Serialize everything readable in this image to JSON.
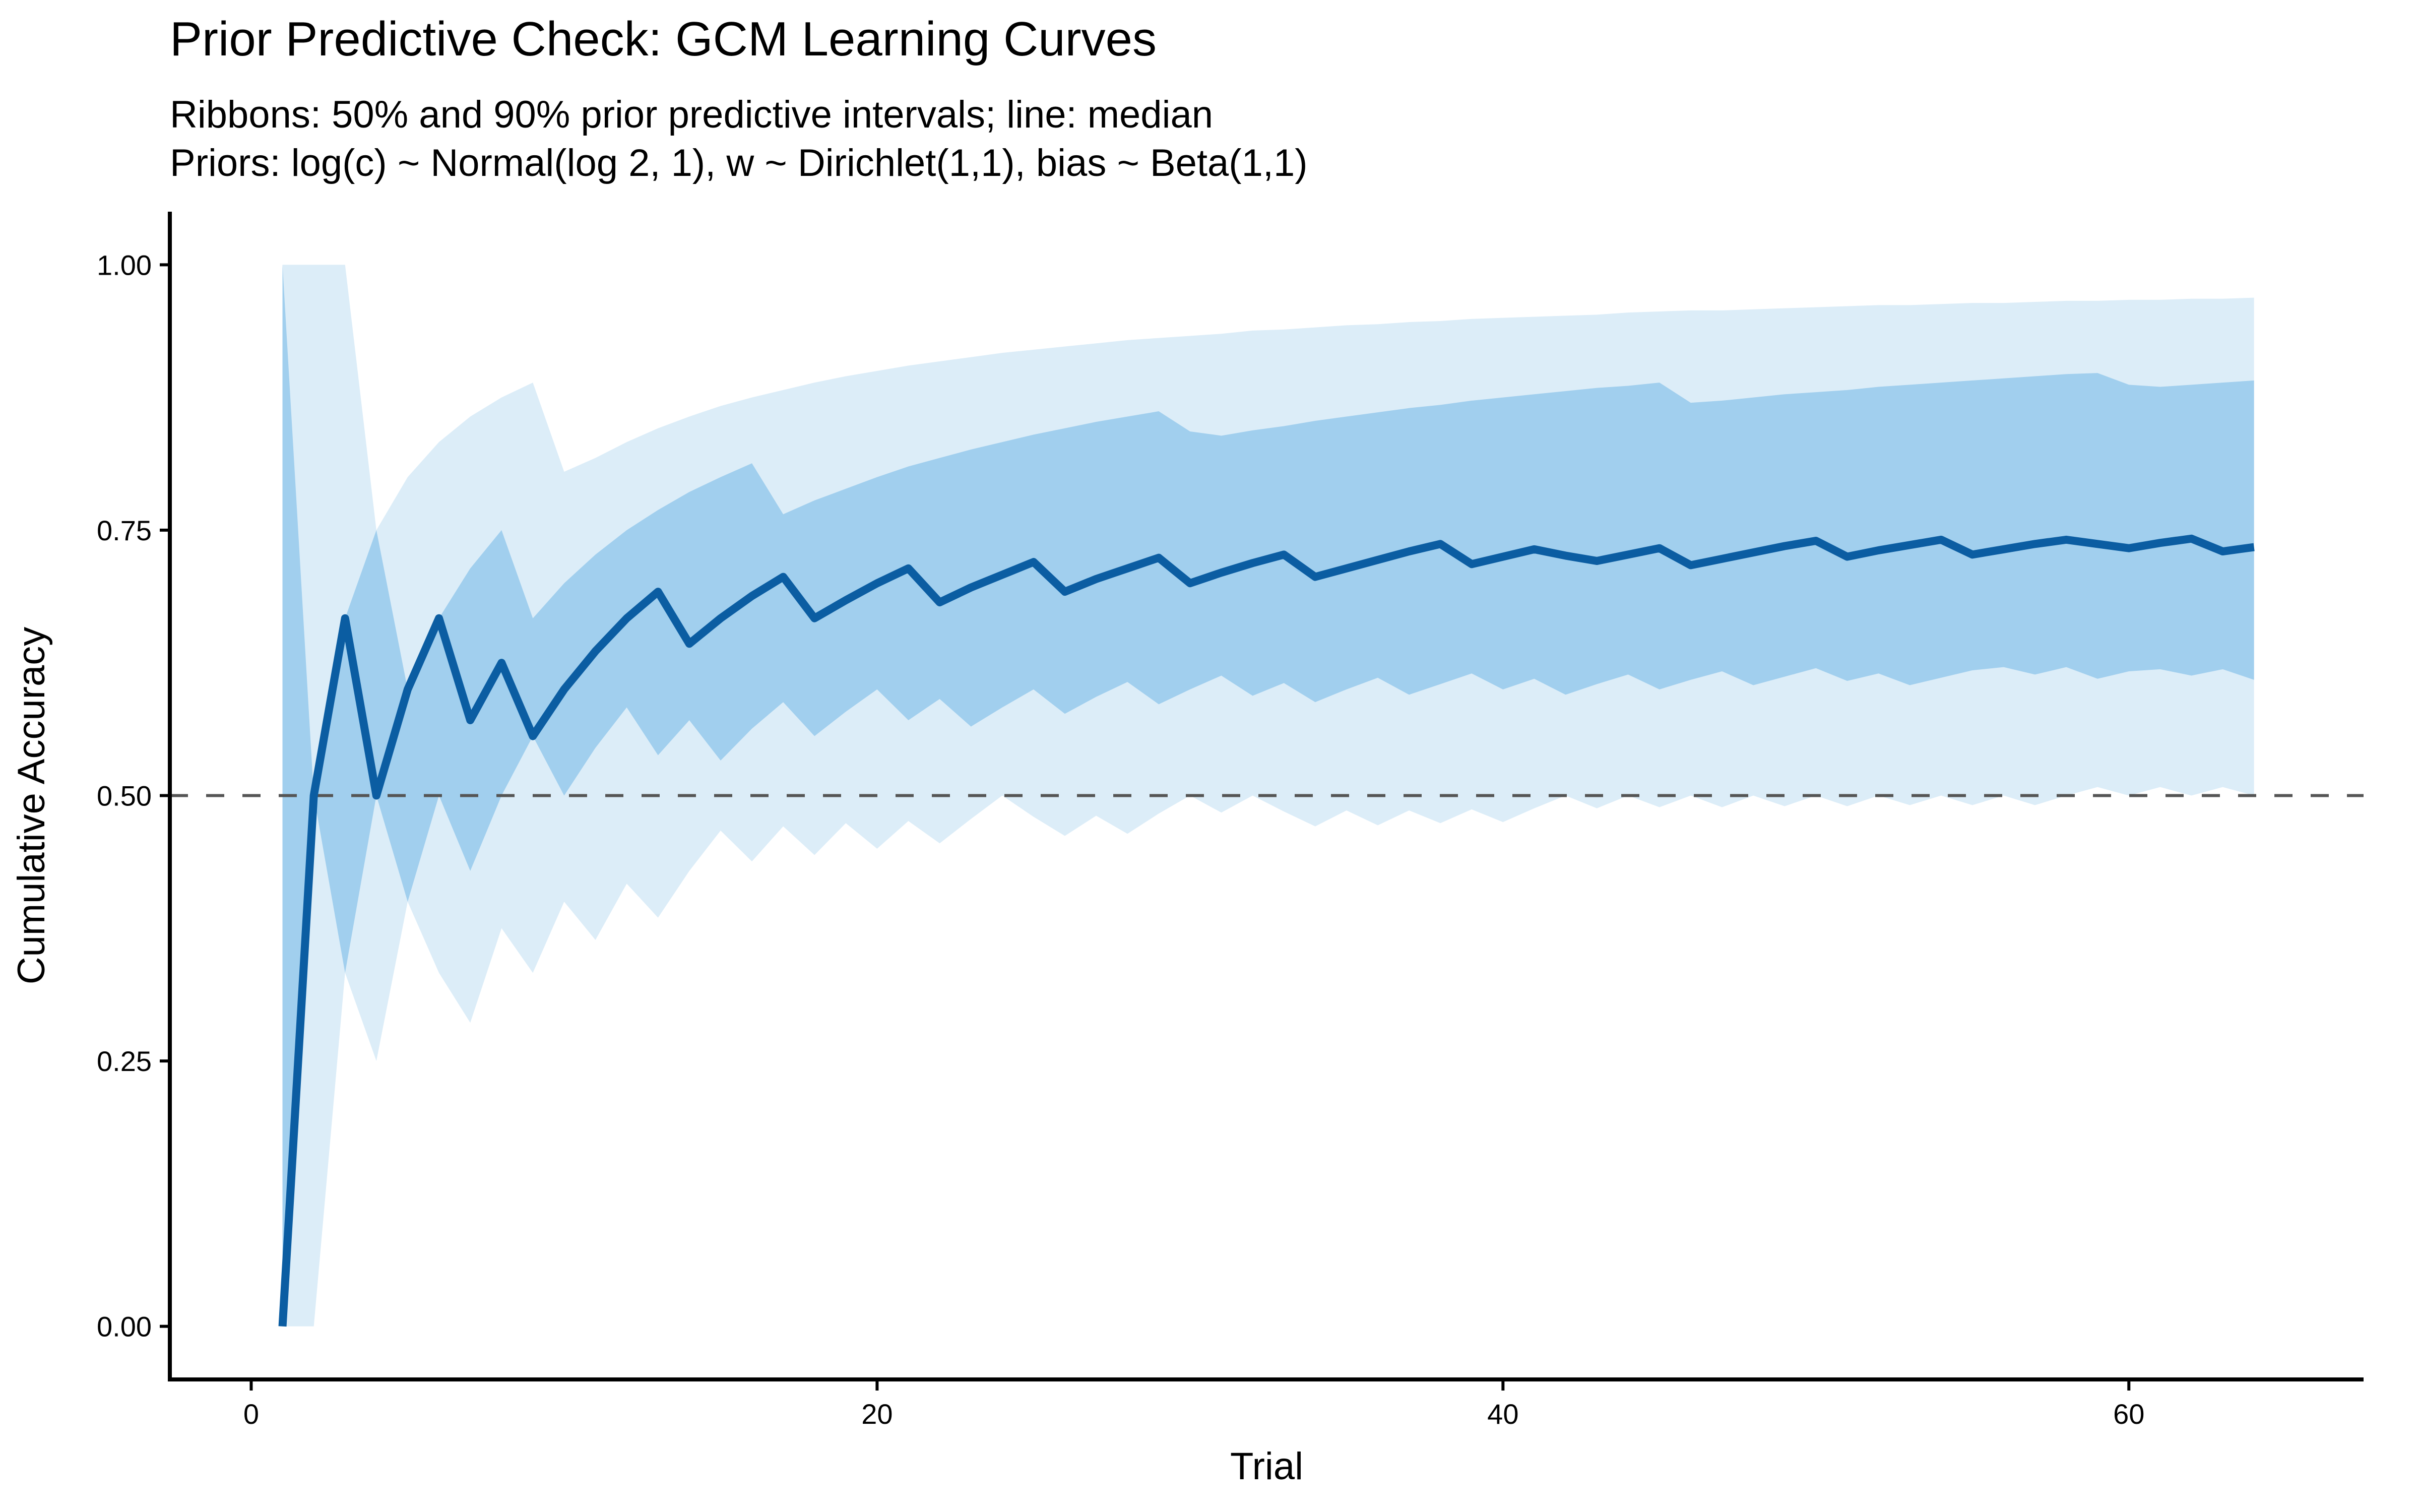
{
  "chart_data": {
    "type": "line",
    "title": "Prior Predictive Check: GCM Learning Curves",
    "subtitle": [
      "Ribbons: 50% and 90% prior predictive intervals; line: median",
      "Priors: log(c) ~ Normal(log 2, 1),  w ~ Dirichlet(1,1),  bias ~ Beta(1,1)"
    ],
    "xlabel": "Trial",
    "ylabel": "Cumulative Accuracy",
    "xlim": [
      -2.6,
      67.5
    ],
    "ylim": [
      -0.05,
      1.05
    ],
    "xticks": [
      0,
      20,
      40,
      60
    ],
    "xtick_labels": [
      "0",
      "20",
      "40",
      "60"
    ],
    "yticks": [
      0,
      0.25,
      0.5,
      0.75,
      1.0
    ],
    "ytick_labels": [
      "0.00",
      "0.25",
      "0.50",
      "0.75",
      "1.00"
    ],
    "grid": false,
    "reference_line": {
      "y": 0.5,
      "style": "dashed",
      "color": "#555555"
    },
    "colors": {
      "median": "#0B5DA2",
      "ribbon50": "#A1CFEE",
      "ribbon90": "#DCEDF8",
      "axis": "#000000"
    },
    "x": [
      1,
      2,
      3,
      4,
      5,
      6,
      7,
      8,
      9,
      10,
      11,
      12,
      13,
      14,
      15,
      16,
      17,
      18,
      19,
      20,
      21,
      22,
      23,
      24,
      25,
      26,
      27,
      28,
      29,
      30,
      31,
      32,
      33,
      34,
      35,
      36,
      37,
      38,
      39,
      40,
      41,
      42,
      43,
      44,
      45,
      46,
      47,
      48,
      49,
      50,
      51,
      52,
      53,
      54,
      55,
      56,
      57,
      58,
      59,
      60,
      61,
      62,
      63,
      64
    ],
    "series": [
      {
        "name": "median",
        "values": [
          0,
          0.5,
          0.667,
          0.5,
          0.6,
          0.667,
          0.571,
          0.625,
          0.556,
          0.6,
          0.636,
          0.667,
          0.692,
          0.643,
          0.667,
          0.688,
          0.706,
          0.667,
          0.684,
          0.7,
          0.714,
          0.682,
          0.696,
          0.708,
          0.72,
          0.692,
          0.704,
          0.714,
          0.724,
          0.7,
          0.71,
          0.719,
          0.727,
          0.706,
          0.714,
          0.722,
          0.73,
          0.737,
          0.718,
          0.725,
          0.732,
          0.726,
          0.721,
          0.727,
          0.733,
          0.717,
          0.723,
          0.729,
          0.735,
          0.74,
          0.725,
          0.731,
          0.736,
          0.741,
          0.727,
          0.732,
          0.737,
          0.741,
          0.737,
          0.733,
          0.738,
          0.742,
          0.73,
          0.734
        ]
      },
      {
        "name": "q05",
        "values": [
          0,
          0,
          0.333,
          0.25,
          0.4,
          0.333,
          0.286,
          0.375,
          0.333,
          0.4,
          0.364,
          0.417,
          0.385,
          0.429,
          0.467,
          0.438,
          0.471,
          0.444,
          0.474,
          0.45,
          0.476,
          0.455,
          0.478,
          0.5,
          0.48,
          0.462,
          0.481,
          0.464,
          0.483,
          0.5,
          0.484,
          0.5,
          0.485,
          0.471,
          0.486,
          0.472,
          0.486,
          0.474,
          0.487,
          0.475,
          0.488,
          0.5,
          0.488,
          0.5,
          0.489,
          0.5,
          0.489,
          0.5,
          0.49,
          0.5,
          0.49,
          0.5,
          0.491,
          0.5,
          0.491,
          0.5,
          0.491,
          0.5,
          0.508,
          0.5,
          0.508,
          0.5,
          0.508,
          0.5
        ]
      },
      {
        "name": "q25",
        "values": [
          0,
          0.5,
          0.333,
          0.5,
          0.4,
          0.5,
          0.429,
          0.5,
          0.556,
          0.5,
          0.545,
          0.583,
          0.538,
          0.571,
          0.533,
          0.563,
          0.588,
          0.556,
          0.579,
          0.6,
          0.571,
          0.591,
          0.565,
          0.583,
          0.6,
          0.577,
          0.593,
          0.607,
          0.586,
          0.6,
          0.613,
          0.594,
          0.606,
          0.588,
          0.6,
          0.611,
          0.595,
          0.605,
          0.615,
          0.6,
          0.61,
          0.595,
          0.605,
          0.614,
          0.6,
          0.609,
          0.617,
          0.604,
          0.612,
          0.62,
          0.608,
          0.615,
          0.604,
          0.611,
          0.618,
          0.621,
          0.614,
          0.621,
          0.61,
          0.617,
          0.619,
          0.613,
          0.619,
          0.609
        ]
      },
      {
        "name": "q75",
        "values": [
          1,
          0.5,
          0.667,
          0.75,
          0.6,
          0.667,
          0.714,
          0.75,
          0.667,
          0.7,
          0.727,
          0.75,
          0.769,
          0.786,
          0.8,
          0.813,
          0.765,
          0.778,
          0.789,
          0.8,
          0.81,
          0.818,
          0.826,
          0.833,
          0.84,
          0.846,
          0.852,
          0.857,
          0.862,
          0.843,
          0.839,
          0.844,
          0.848,
          0.853,
          0.857,
          0.861,
          0.865,
          0.868,
          0.872,
          0.875,
          0.878,
          0.881,
          0.884,
          0.886,
          0.889,
          0.87,
          0.872,
          0.875,
          0.878,
          0.88,
          0.882,
          0.885,
          0.887,
          0.889,
          0.891,
          0.893,
          0.895,
          0.897,
          0.898,
          0.887,
          0.885,
          0.887,
          0.889,
          0.891
        ]
      },
      {
        "name": "q95",
        "values": [
          1,
          1,
          1,
          0.75,
          0.8,
          0.833,
          0.857,
          0.875,
          0.889,
          0.805,
          0.818,
          0.833,
          0.846,
          0.857,
          0.867,
          0.875,
          0.882,
          0.889,
          0.895,
          0.9,
          0.905,
          0.909,
          0.913,
          0.917,
          0.92,
          0.923,
          0.926,
          0.929,
          0.931,
          0.933,
          0.935,
          0.938,
          0.939,
          0.941,
          0.943,
          0.944,
          0.946,
          0.947,
          0.949,
          0.95,
          0.951,
          0.952,
          0.953,
          0.955,
          0.956,
          0.957,
          0.957,
          0.958,
          0.959,
          0.96,
          0.961,
          0.962,
          0.962,
          0.963,
          0.964,
          0.964,
          0.965,
          0.966,
          0.966,
          0.967,
          0.967,
          0.968,
          0.968,
          0.969
        ]
      }
    ]
  }
}
